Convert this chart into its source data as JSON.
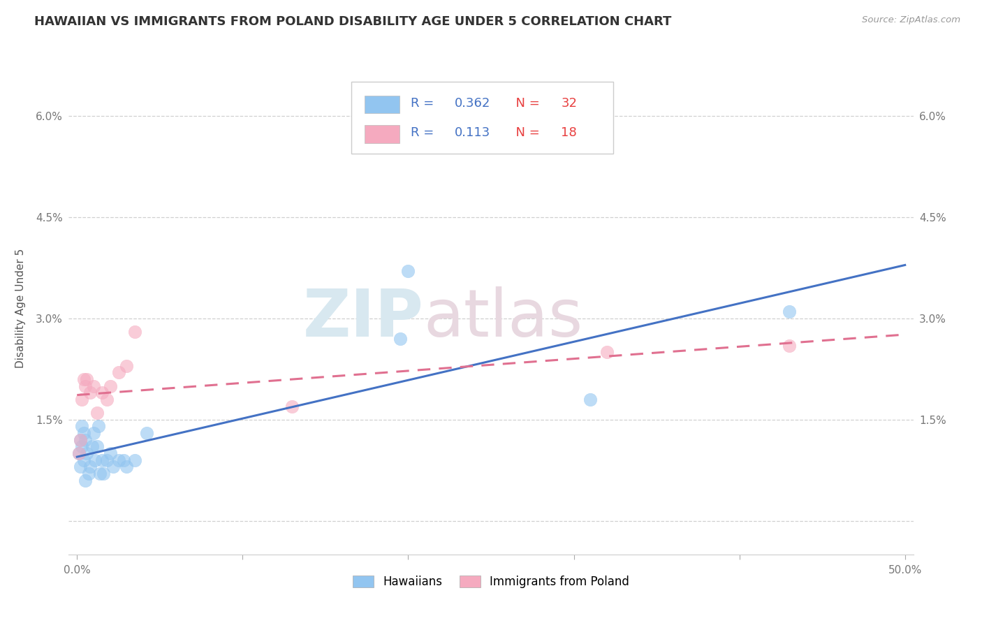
{
  "title": "HAWAIIAN VS IMMIGRANTS FROM POLAND DISABILITY AGE UNDER 5 CORRELATION CHART",
  "source": "Source: ZipAtlas.com",
  "ylabel": "Disability Age Under 5",
  "xlim": [
    -0.005,
    0.505
  ],
  "ylim": [
    -0.005,
    0.068
  ],
  "yticks": [
    0.0,
    0.015,
    0.03,
    0.045,
    0.06
  ],
  "ytick_labels": [
    "",
    "1.5%",
    "3.0%",
    "4.5%",
    "6.0%"
  ],
  "xticks": [
    0.0,
    0.1,
    0.2,
    0.3,
    0.4,
    0.5
  ],
  "xtick_labels": [
    "0.0%",
    "",
    "",
    "",
    "",
    "50.0%"
  ],
  "legend_labels": [
    "Hawaiians",
    "Immigrants from Poland"
  ],
  "r_hawaiian": "0.362",
  "n_hawaiian": "32",
  "r_poland": "0.113",
  "n_poland": "18",
  "hawaiian_color": "#92C5F0",
  "poland_color": "#F5AABF",
  "hawaiian_line_color": "#4472C4",
  "poland_line_color": "#E07090",
  "background_color": "#ffffff",
  "grid_color": "#d0d0d0",
  "hawaiian_x": [
    0.001,
    0.002,
    0.002,
    0.003,
    0.003,
    0.004,
    0.004,
    0.005,
    0.005,
    0.006,
    0.007,
    0.008,
    0.009,
    0.01,
    0.011,
    0.012,
    0.013,
    0.014,
    0.015,
    0.016,
    0.018,
    0.02,
    0.022,
    0.025,
    0.028,
    0.03,
    0.035,
    0.042,
    0.195,
    0.2,
    0.31,
    0.43
  ],
  "hawaiian_y": [
    0.01,
    0.008,
    0.012,
    0.011,
    0.014,
    0.009,
    0.013,
    0.006,
    0.012,
    0.01,
    0.007,
    0.008,
    0.011,
    0.013,
    0.009,
    0.011,
    0.014,
    0.007,
    0.009,
    0.007,
    0.009,
    0.01,
    0.008,
    0.009,
    0.009,
    0.008,
    0.009,
    0.013,
    0.027,
    0.037,
    0.018,
    0.031
  ],
  "poland_x": [
    0.001,
    0.002,
    0.003,
    0.004,
    0.005,
    0.006,
    0.008,
    0.01,
    0.012,
    0.015,
    0.018,
    0.02,
    0.025,
    0.03,
    0.035,
    0.13,
    0.32,
    0.43
  ],
  "poland_y": [
    0.01,
    0.012,
    0.018,
    0.021,
    0.02,
    0.021,
    0.019,
    0.02,
    0.016,
    0.019,
    0.018,
    0.02,
    0.022,
    0.023,
    0.028,
    0.017,
    0.025,
    0.026
  ]
}
